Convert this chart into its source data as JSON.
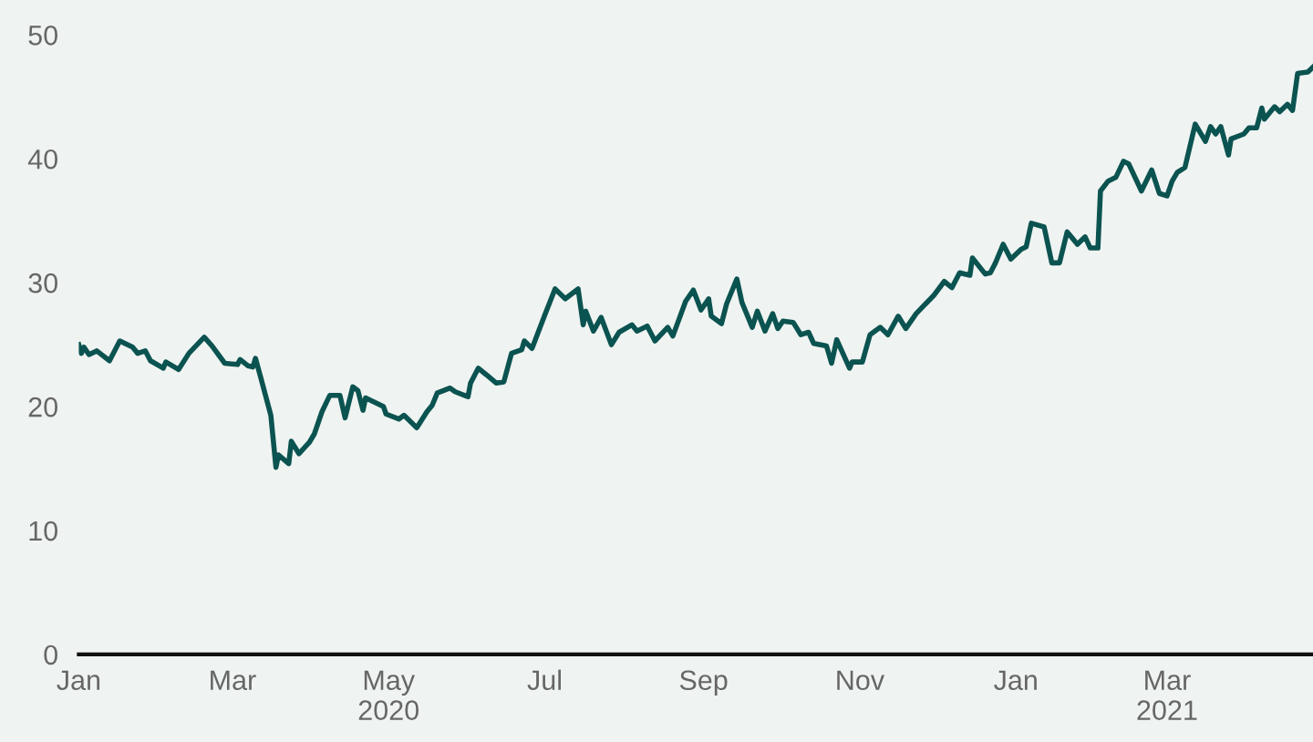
{
  "chart_data": {
    "type": "line",
    "x": [
      "2020-01-01",
      "2020-01-02",
      "2020-01-03",
      "2020-01-05",
      "2020-01-08",
      "2020-01-13",
      "2020-01-17",
      "2020-01-22",
      "2020-01-24",
      "2020-01-27",
      "2020-01-29",
      "2020-02-03",
      "2020-02-04",
      "2020-02-09",
      "2020-02-13",
      "2020-02-19",
      "2020-02-22",
      "2020-02-27",
      "2020-03-03",
      "2020-03-04",
      "2020-03-07",
      "2020-03-09",
      "2020-03-10",
      "2020-03-12",
      "2020-03-16",
      "2020-03-18",
      "2020-03-19",
      "2020-03-23",
      "2020-03-24",
      "2020-03-27",
      "2020-03-31",
      "2020-04-02",
      "2020-04-05",
      "2020-04-08",
      "2020-04-12",
      "2020-04-14",
      "2020-04-17",
      "2020-04-19",
      "2020-04-21",
      "2020-04-22",
      "2020-04-29",
      "2020-04-30",
      "2020-05-05",
      "2020-05-07",
      "2020-05-12",
      "2020-05-16",
      "2020-05-18",
      "2020-05-20",
      "2020-05-25",
      "2020-05-27",
      "2020-06-01",
      "2020-06-02",
      "2020-06-05",
      "2020-06-08",
      "2020-06-12",
      "2020-06-15",
      "2020-06-18",
      "2020-06-22",
      "2020-06-23",
      "2020-06-26",
      "2020-07-01",
      "2020-07-05",
      "2020-07-09",
      "2020-07-14",
      "2020-07-16",
      "2020-07-17",
      "2020-07-20",
      "2020-07-23",
      "2020-07-27",
      "2020-07-30",
      "2020-08-04",
      "2020-08-06",
      "2020-08-10",
      "2020-08-13",
      "2020-08-18",
      "2020-08-20",
      "2020-08-25",
      "2020-08-28",
      "2020-08-31",
      "2020-09-03",
      "2020-09-04",
      "2020-09-08",
      "2020-09-10",
      "2020-09-14",
      "2020-09-16",
      "2020-09-20",
      "2020-09-22",
      "2020-09-25",
      "2020-09-28",
      "2020-09-30",
      "2020-10-02",
      "2020-10-06",
      "2020-10-09",
      "2020-10-12",
      "2020-10-14",
      "2020-10-19",
      "2020-10-21",
      "2020-10-23",
      "2020-10-28",
      "2020-10-29",
      "2020-11-02",
      "2020-11-05",
      "2020-11-09",
      "2020-11-12",
      "2020-11-16",
      "2020-11-19",
      "2020-11-23",
      "2020-11-30",
      "2020-12-04",
      "2020-12-07",
      "2020-12-10",
      "2020-12-14",
      "2020-12-15",
      "2020-12-20",
      "2020-12-22",
      "2020-12-24",
      "2020-12-27",
      "2020-12-30",
      "2021-01-03",
      "2021-01-05",
      "2021-01-07",
      "2021-01-12",
      "2021-01-15",
      "2021-01-18",
      "2021-01-21",
      "2021-01-25",
      "2021-01-28",
      "2021-01-30",
      "2021-02-02",
      "2021-02-03",
      "2021-02-06",
      "2021-02-09",
      "2021-02-12",
      "2021-02-14",
      "2021-02-19",
      "2021-02-23",
      "2021-02-26",
      "2021-03-01",
      "2021-03-03",
      "2021-03-05",
      "2021-03-08",
      "2021-03-12",
      "2021-03-16",
      "2021-03-18",
      "2021-03-20",
      "2021-03-22",
      "2021-03-25",
      "2021-03-26",
      "2021-03-31",
      "2021-04-02",
      "2021-04-05",
      "2021-04-07",
      "2021-04-08",
      "2021-04-12",
      "2021-04-14",
      "2021-04-17",
      "2021-04-19",
      "2021-04-21",
      "2021-04-25",
      "2021-04-27"
    ],
    "series": [
      {
        "color": "#0b5350",
        "values": [
          25.0,
          24.3,
          24.8,
          24.2,
          24.5,
          23.7,
          25.3,
          24.8,
          24.3,
          24.5,
          23.7,
          23.1,
          23.6,
          23.0,
          24.3,
          25.6,
          24.9,
          23.5,
          23.4,
          23.8,
          23.3,
          23.2,
          23.9,
          22.4,
          19.3,
          15.1,
          16.1,
          15.4,
          17.2,
          16.2,
          17.1,
          17.8,
          19.6,
          20.9,
          20.9,
          19.1,
          21.6,
          21.3,
          19.7,
          20.7,
          20.0,
          19.4,
          19.0,
          19.3,
          18.3,
          19.6,
          20.1,
          21.1,
          21.5,
          21.2,
          20.8,
          21.9,
          23.1,
          22.6,
          21.9,
          22.0,
          24.3,
          24.6,
          25.3,
          24.7,
          27.4,
          29.5,
          28.7,
          29.5,
          26.6,
          27.7,
          26.1,
          27.2,
          25.0,
          26.0,
          26.6,
          26.1,
          26.5,
          25.3,
          26.4,
          25.7,
          28.5,
          29.4,
          27.8,
          28.7,
          27.3,
          26.7,
          28.3,
          30.3,
          28.4,
          26.4,
          27.7,
          26.1,
          27.5,
          26.3,
          26.9,
          26.8,
          25.8,
          26.0,
          25.1,
          24.9,
          23.5,
          25.4,
          23.1,
          23.6,
          23.6,
          25.8,
          26.4,
          25.8,
          27.3,
          26.3,
          27.5,
          29.0,
          30.1,
          29.6,
          30.8,
          30.6,
          32.0,
          30.7,
          30.8,
          31.6,
          33.1,
          31.9,
          32.7,
          32.9,
          34.8,
          34.5,
          31.6,
          31.6,
          34.1,
          33.1,
          33.7,
          32.8,
          32.8,
          37.4,
          38.2,
          38.5,
          39.8,
          39.6,
          37.4,
          39.1,
          37.2,
          37.0,
          38.2,
          38.9,
          39.3,
          42.8,
          41.4,
          42.6,
          42.0,
          42.6,
          40.3,
          41.6,
          42.0,
          42.5,
          42.5,
          44.1,
          43.2,
          44.2,
          43.8,
          44.4,
          43.9,
          46.9,
          47.0,
          47.4
        ]
      }
    ],
    "xlim": [
      "2020-01-01",
      "2021-04-27"
    ],
    "xticks": [
      {
        "value": "2020-01-01",
        "label": "Jan"
      },
      {
        "value": "2020-03-01",
        "label": "Mar"
      },
      {
        "value": "2020-05-01",
        "label": "May\n2020"
      },
      {
        "value": "2020-07-01",
        "label": "Jul"
      },
      {
        "value": "2020-09-01",
        "label": "Sep"
      },
      {
        "value": "2020-11-01",
        "label": "Nov"
      },
      {
        "value": "2021-01-01",
        "label": "Jan"
      },
      {
        "value": "2021-03-01",
        "label": "Mar\n2021"
      }
    ],
    "ylim": [
      0,
      50
    ],
    "yticks": [
      0,
      10,
      20,
      30,
      40,
      50
    ],
    "grid": false,
    "marker": "none",
    "line_style": "solid"
  }
}
